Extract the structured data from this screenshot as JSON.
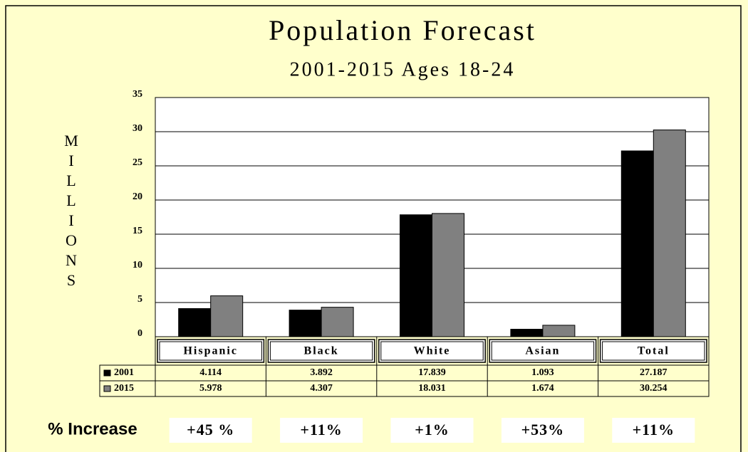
{
  "chart_data": {
    "type": "bar",
    "title": "Population Forecast",
    "subtitle": "2001-2015 Ages 18-24",
    "y_axis_label": "MILLIONS",
    "categories": [
      "Hispanic",
      "Black",
      "White",
      "Asian",
      "Total"
    ],
    "series": [
      {
        "name": "2001",
        "color": "#000000",
        "values": [
          4.114,
          3.892,
          17.839,
          1.093,
          27.187
        ]
      },
      {
        "name": "2015",
        "color": "#808080",
        "values": [
          5.978,
          4.307,
          18.031,
          1.674,
          30.254
        ]
      }
    ],
    "ylim": [
      0,
      35
    ],
    "yticks": [
      0,
      5,
      10,
      15,
      20,
      25,
      30,
      35
    ],
    "grid": true,
    "annotation_title": "% Increase",
    "annotations": [
      "+45 %",
      "+11%",
      "+1%",
      "+53%",
      "+11%"
    ]
  }
}
